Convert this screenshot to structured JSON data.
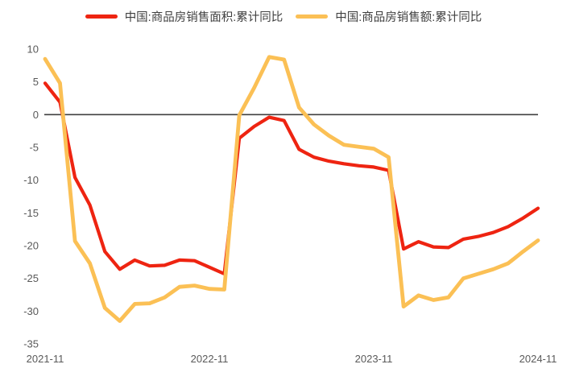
{
  "chart_data": {
    "type": "line",
    "x": [
      "2021-11",
      "2021-12",
      "2022-02",
      "2022-03",
      "2022-04",
      "2022-05",
      "2022-06",
      "2022-07",
      "2022-08",
      "2022-09",
      "2022-10",
      "2022-11",
      "2022-12",
      "2023-02",
      "2023-03",
      "2023-04",
      "2023-05",
      "2023-06",
      "2023-07",
      "2023-08",
      "2023-09",
      "2023-10",
      "2023-11",
      "2023-12",
      "2024-02",
      "2024-03",
      "2024-04",
      "2024-05",
      "2024-06",
      "2024-07",
      "2024-08",
      "2024-09",
      "2024-10",
      "2024-11"
    ],
    "series": [
      {
        "name": "中国:商品房销售面积:累计同比",
        "color": "#ee2411",
        "values": [
          4.8,
          1.9,
          -9.6,
          -13.8,
          -20.9,
          -23.6,
          -22.2,
          -23.1,
          -23.0,
          -22.2,
          -22.3,
          -23.3,
          -24.3,
          -3.6,
          -1.8,
          -0.4,
          -0.9,
          -5.3,
          -6.5,
          -7.1,
          -7.5,
          -7.8,
          -8.0,
          -8.5,
          -20.5,
          -19.4,
          -20.2,
          -20.3,
          -19.0,
          -18.6,
          -18.0,
          -17.1,
          -15.8,
          -14.3
        ]
      },
      {
        "name": "中国:商品房销售额:累计同比",
        "color": "#fbc055",
        "values": [
          8.5,
          4.8,
          -19.3,
          -22.7,
          -29.5,
          -31.5,
          -28.9,
          -28.8,
          -27.9,
          -26.3,
          -26.1,
          -26.6,
          -26.7,
          -0.1,
          4.1,
          8.8,
          8.4,
          1.1,
          -1.5,
          -3.2,
          -4.6,
          -4.9,
          -5.2,
          -6.5,
          -29.3,
          -27.6,
          -28.3,
          -27.9,
          -25.0,
          -24.3,
          -23.6,
          -22.7,
          -20.9,
          -19.2
        ]
      }
    ],
    "ylim": [
      -35,
      10
    ],
    "yticks": [
      10,
      5,
      0,
      -5,
      -10,
      -15,
      -20,
      -25,
      -30,
      -35
    ],
    "xticks": [
      {
        "label": "2021-11",
        "index": 0
      },
      {
        "label": "2022-11",
        "index": 11
      },
      {
        "label": "2023-11",
        "index": 22
      },
      {
        "label": "2024-11",
        "index": 33
      }
    ],
    "grid": false,
    "zero_line": true,
    "legend_position": "top"
  },
  "colors": {
    "background": "#ffffff",
    "axis_text": "#595959",
    "legend_text": "#404040",
    "zero_line": "#3f3f3f"
  }
}
